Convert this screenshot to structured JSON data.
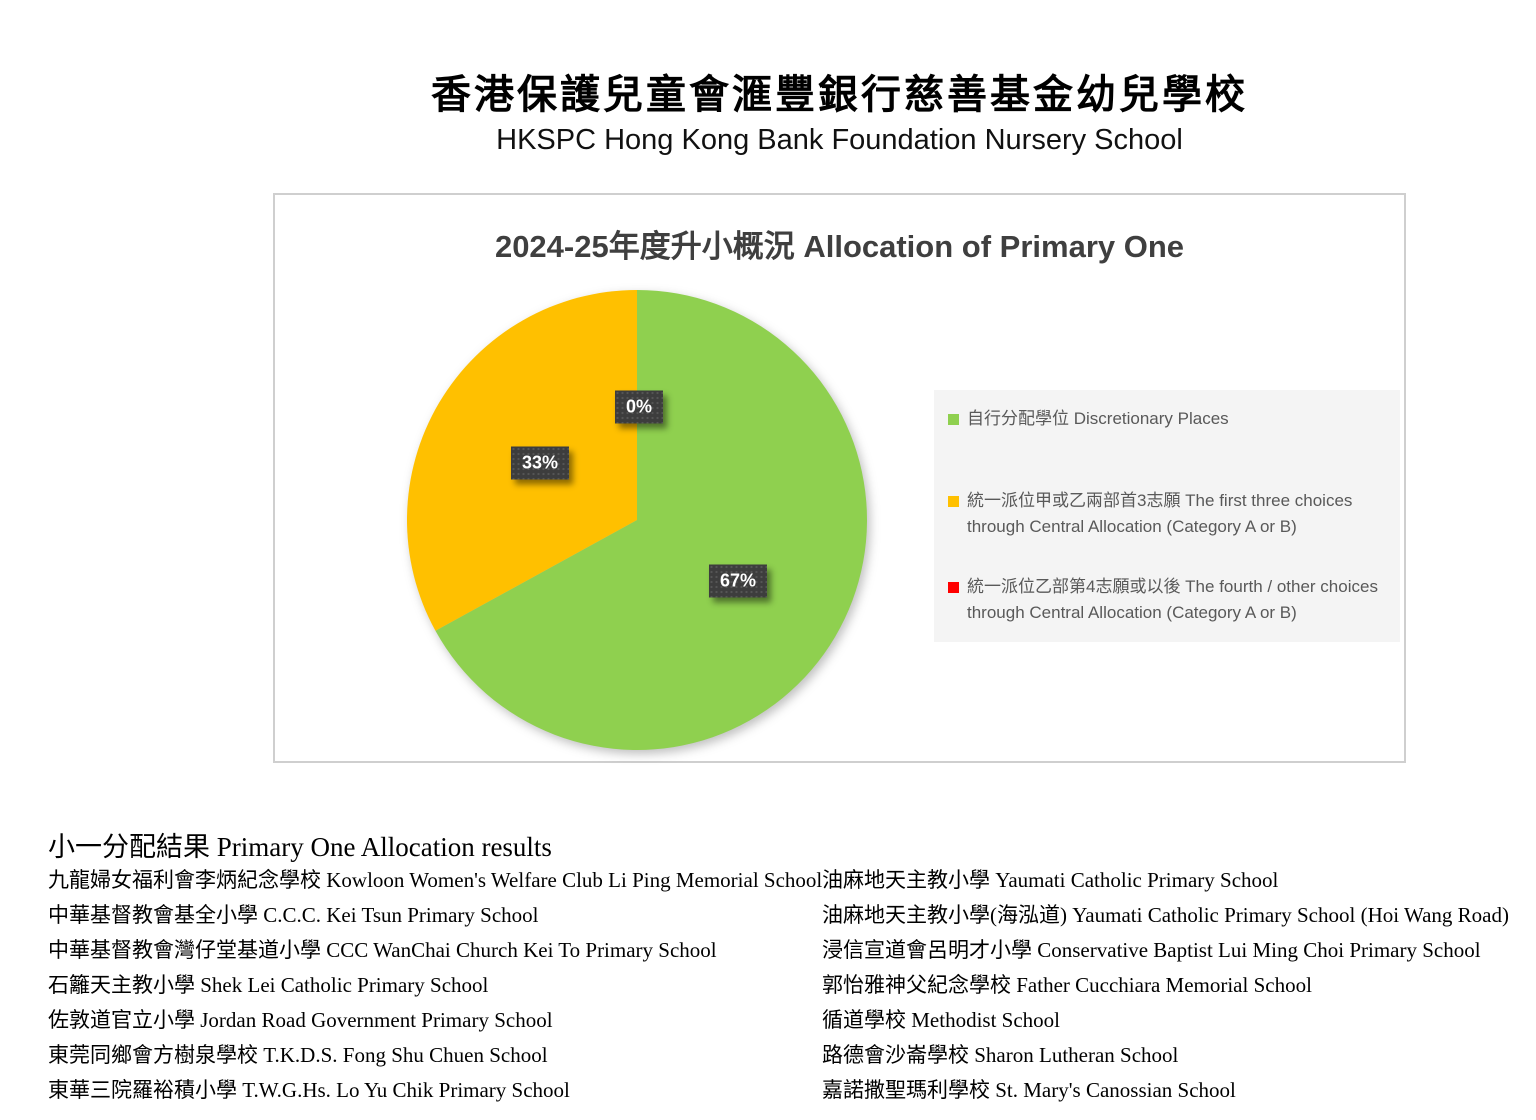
{
  "page": {
    "title_zh": "香港保護兒童會滙豐銀行慈善基金幼兒學校",
    "title_en": "HKSPC Hong Kong Bank Foundation Nursery School"
  },
  "chart_data": {
    "type": "pie",
    "title": "2024-25年度升小概況 Allocation of Primary One",
    "legend_position": "right",
    "slices": [
      {
        "label": "自行分配學位 Discretionary Places",
        "value": 67,
        "display": "67%",
        "color": "#8FD04F"
      },
      {
        "label": "統一派位甲或乙兩部首3志願 The first three choices through Central Allocation (Category A or B)",
        "value": 33,
        "display": "33%",
        "color": "#FFC000"
      },
      {
        "label": "統一派位乙部第4志願或以後 The fourth / other choices through Central Allocation (Category A or B)",
        "value": 0,
        "display": "0%",
        "color": "#FF0000"
      }
    ]
  },
  "results": {
    "heading": "小一分配結果 Primary One Allocation results",
    "left_column": [
      "九龍婦女福利會李炳紀念學校 Kowloon Women's Welfare Club Li Ping Memorial School",
      "中華基督教會基全小學 C.C.C. Kei Tsun Primary School",
      "中華基督教會灣仔堂基道小學 CCC WanChai Church Kei To Primary School",
      "石籬天主教小學 Shek Lei Catholic Primary School",
      "佐敦道官立小學 Jordan Road Government Primary School",
      "東莞同鄉會方樹泉學校 T.K.D.S. Fong Shu Chuen School",
      "東華三院羅裕積小學 T.W.G.Hs. Lo Yu Chik Primary School"
    ],
    "right_column": [
      "油麻地天主教小學 Yaumati Catholic Primary School",
      "油麻地天主教小學(海泓道) Yaumati Catholic Primary School (Hoi Wang Road)",
      "浸信宣道會呂明才小學 Conservative Baptist Lui Ming Choi Primary School",
      "郭怡雅神父紀念學校 Father Cucchiara Memorial School",
      "循道學校 Methodist School",
      "路德會沙崙學校 Sharon Lutheran School",
      "嘉諾撒聖瑪利學校 St. Mary's Canossian School"
    ]
  }
}
